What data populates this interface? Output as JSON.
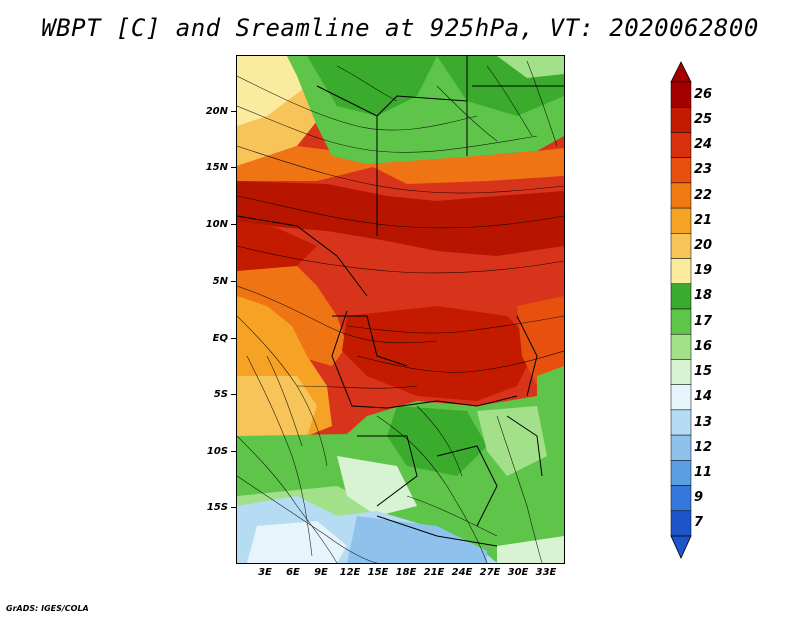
{
  "title": "WBPT [C] and Sreamline at 925hPa, VT: 2020062800",
  "credit": "GrADS: IGES/COLA",
  "lat_labels": [
    "20N",
    "15N",
    "10N",
    "5N",
    "EQ",
    "5S",
    "10S",
    "15S"
  ],
  "lon_labels": [
    "3E",
    "6E",
    "9E",
    "12E",
    "15E",
    "18E",
    "21E",
    "24E",
    "27E",
    "30E",
    "33E"
  ],
  "colorbar": {
    "labels": [
      "26",
      "25",
      "24",
      "23",
      "22",
      "21",
      "20",
      "19",
      "18",
      "17",
      "16",
      "15",
      "14",
      "13",
      "12",
      "11",
      "9",
      "7"
    ],
    "colors": [
      "#a50000",
      "#c41a00",
      "#d7300c",
      "#e8500e",
      "#f07a12",
      "#f5a225",
      "#f7c45a",
      "#faeb9e",
      "#3aab2c",
      "#5fc44a",
      "#a3e08a",
      "#d8f3d2",
      "#e6f4fb",
      "#b6dcf3",
      "#8ec2ec",
      "#5a9fe1",
      "#3477db",
      "#1b55c9"
    ]
  }
}
